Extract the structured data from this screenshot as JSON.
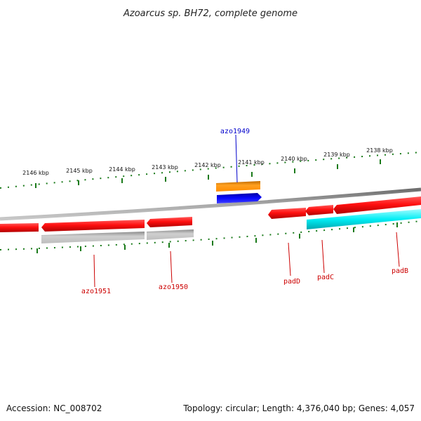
{
  "title": "Azoarcus sp. BH72, complete genome",
  "footer": {
    "accession": "Accession: NC_008702",
    "topology": "Topology: circular; Length: 4,376,040 bp; Genes: 4,057"
  },
  "colors": {
    "backbone": "#8c8c8c",
    "tick": "#1a7a1a",
    "red": "#e8000b",
    "cyan": "#00e5ee",
    "gray": "#b8b8b8",
    "orange": "#ff8c00",
    "blue": "#0000ee",
    "label_red": "#cc0000",
    "label_blue": "#0000cc"
  },
  "scale": {
    "tick_labels": [
      "2146 kbp",
      "2145 kbp",
      "2144 kbp",
      "2143 kbp",
      "2142 kbp",
      "2141 kbp",
      "2140 kbp",
      "2139 kbp",
      "2138 kbp"
    ]
  },
  "gene_labels": [
    {
      "name": "azo1949",
      "color": "blue"
    },
    {
      "name": "azo1951",
      "color": "red"
    },
    {
      "name": "azo1950",
      "color": "red"
    },
    {
      "name": "padD",
      "color": "red"
    },
    {
      "name": "padC",
      "color": "red"
    },
    {
      "name": "padB",
      "color": "red"
    }
  ]
}
